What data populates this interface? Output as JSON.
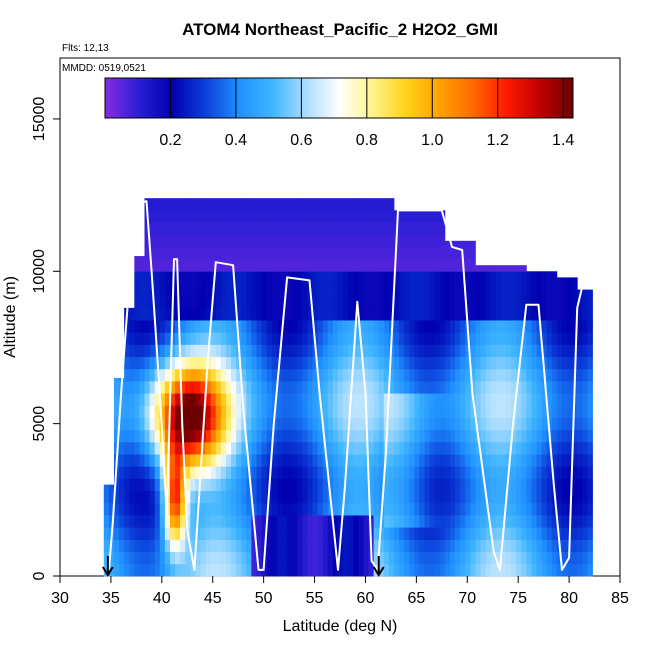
{
  "chart_data": {
    "type": "heatmap",
    "title": "ATOM4 Northeast_Pacific_2 H2O2_GMI",
    "flights_note": "Flts: 12,13",
    "date_note": "MMDD: 0519,0521",
    "xlabel": "Latitude (deg N)",
    "ylabel": "Altitude (m)",
    "xlim": [
      30,
      85
    ],
    "ylim": [
      0,
      17000
    ],
    "x_ticks": [
      "30",
      "35",
      "40",
      "45",
      "50",
      "55",
      "60",
      "65",
      "70",
      "75",
      "80",
      "85"
    ],
    "y_ticks": [
      "0",
      "5000",
      "10000",
      "15000"
    ],
    "colorbar": {
      "range": [
        0,
        1.43
      ],
      "ticks": [
        "0.2",
        "0.4",
        "0.6",
        "0.8",
        "1.0",
        "1.2",
        "1.4"
      ],
      "colors": [
        "#8a2be2",
        "#2b1fd6",
        "#0000b0",
        "#0b3fd9",
        "#1f8fff",
        "#3fb5ff",
        "#a9dcff",
        "#ffffff",
        "#fff38a",
        "#ffd21a",
        "#ffa200",
        "#ff6a00",
        "#ff1a00",
        "#c00000",
        "#6e0000"
      ]
    },
    "markers": [
      {
        "latitude": 34.7,
        "symbol": "arrow"
      },
      {
        "latitude": 61.3,
        "symbol": "arrow"
      }
    ],
    "flight_track": [
      [
        34.8,
        200
      ],
      [
        35.2,
        1800
      ],
      [
        36,
        6000
      ],
      [
        37,
        10500
      ],
      [
        37.5,
        12200
      ],
      [
        38.5,
        12300
      ],
      [
        39,
        10000
      ],
      [
        39.8,
        6000
      ],
      [
        40.5,
        2000
      ],
      [
        41.2,
        10400
      ],
      [
        41.5,
        10400
      ],
      [
        42,
        5000
      ],
      [
        42.5,
        1500
      ],
      [
        43.2,
        200
      ],
      [
        44.5,
        7000
      ],
      [
        45.3,
        10300
      ],
      [
        47,
        10200
      ],
      [
        48,
        5500
      ],
      [
        49.5,
        200
      ],
      [
        50,
        200
      ],
      [
        51,
        5000
      ],
      [
        52.3,
        9800
      ],
      [
        54.5,
        9700
      ],
      [
        55.5,
        6000
      ],
      [
        57.3,
        200
      ],
      [
        58,
        3000
      ],
      [
        59.2,
        9000
      ],
      [
        60,
        6000
      ],
      [
        60.6,
        500
      ],
      [
        61.2,
        200
      ],
      [
        62,
        4000
      ],
      [
        63.2,
        12000
      ],
      [
        67.5,
        12000
      ],
      [
        68.5,
        10800
      ],
      [
        69.5,
        10700
      ],
      [
        70.5,
        6000
      ],
      [
        72.6,
        800
      ],
      [
        73.2,
        200
      ],
      [
        74.5,
        5000
      ],
      [
        75.8,
        8900
      ],
      [
        77,
        8900
      ],
      [
        78.5,
        3000
      ],
      [
        79.3,
        200
      ],
      [
        80,
        600
      ],
      [
        80.8,
        8800
      ],
      [
        81.3,
        9500
      ]
    ],
    "field_description": "H2O2 concentration curtain along flight latitudes; max ~1.4 near 40-46N at 2000-7000 m, low (~0.1-0.2) aloft above 10000 m"
  }
}
